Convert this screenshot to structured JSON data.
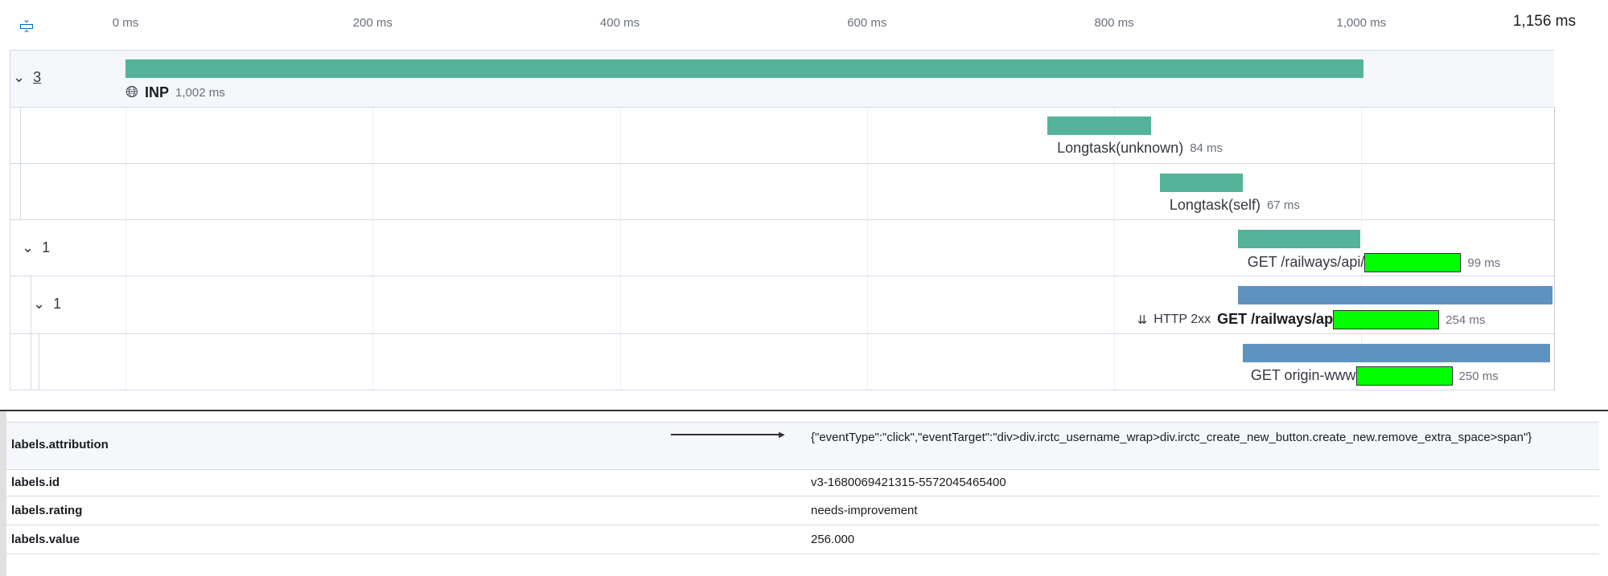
{
  "axis": {
    "ticks": [
      "0 ms",
      "200 ms",
      "400 ms",
      "600 ms",
      "800 ms",
      "1,000 ms"
    ],
    "tick_values": [
      0,
      200,
      400,
      600,
      800,
      1000
    ],
    "total": "1,156 ms",
    "max_ms": 1156
  },
  "colors": {
    "app": "#54b399",
    "http": "#6092c0",
    "redaction": "#00ff00"
  },
  "rows": [
    {
      "toggle": "3",
      "name": "INP",
      "duration": "1,002 ms",
      "start": 0,
      "end": 1002,
      "icon": "globe-icon",
      "color": "#54b399"
    },
    {
      "name": "Longtask(unknown)",
      "duration": "84 ms",
      "start": 746,
      "end": 830,
      "color": "#54b399"
    },
    {
      "name": "Longtask(self)",
      "duration": "67 ms",
      "start": 837,
      "end": 904,
      "color": "#54b399"
    },
    {
      "toggle": "1",
      "name": "GET /railways/api/",
      "duration": "99 ms",
      "start": 900,
      "end": 999,
      "color": "#54b399"
    },
    {
      "toggle": "1",
      "badge": "HTTP 2xx",
      "name": "GET /railways/ap",
      "duration": "254 ms",
      "start": 900,
      "end": 1155,
      "color": "#6092c0"
    },
    {
      "name": "GET origin-www",
      "duration": "250 ms",
      "start": 904,
      "end": 1153,
      "color": "#6092c0"
    }
  ],
  "table": [
    {
      "key": "labels.attribution",
      "value": "{\"eventType\":\"click\",\"eventTarget\":\"div>div.irctc_username_wrap>div.irctc_create_new_button.create_new.remove_extra_space>span\"}"
    },
    {
      "key": "labels.id",
      "value": "v3-1680069421315-5572045465400"
    },
    {
      "key": "labels.rating",
      "value": "needs-improvement"
    },
    {
      "key": "labels.value",
      "value": "256.000"
    }
  ]
}
